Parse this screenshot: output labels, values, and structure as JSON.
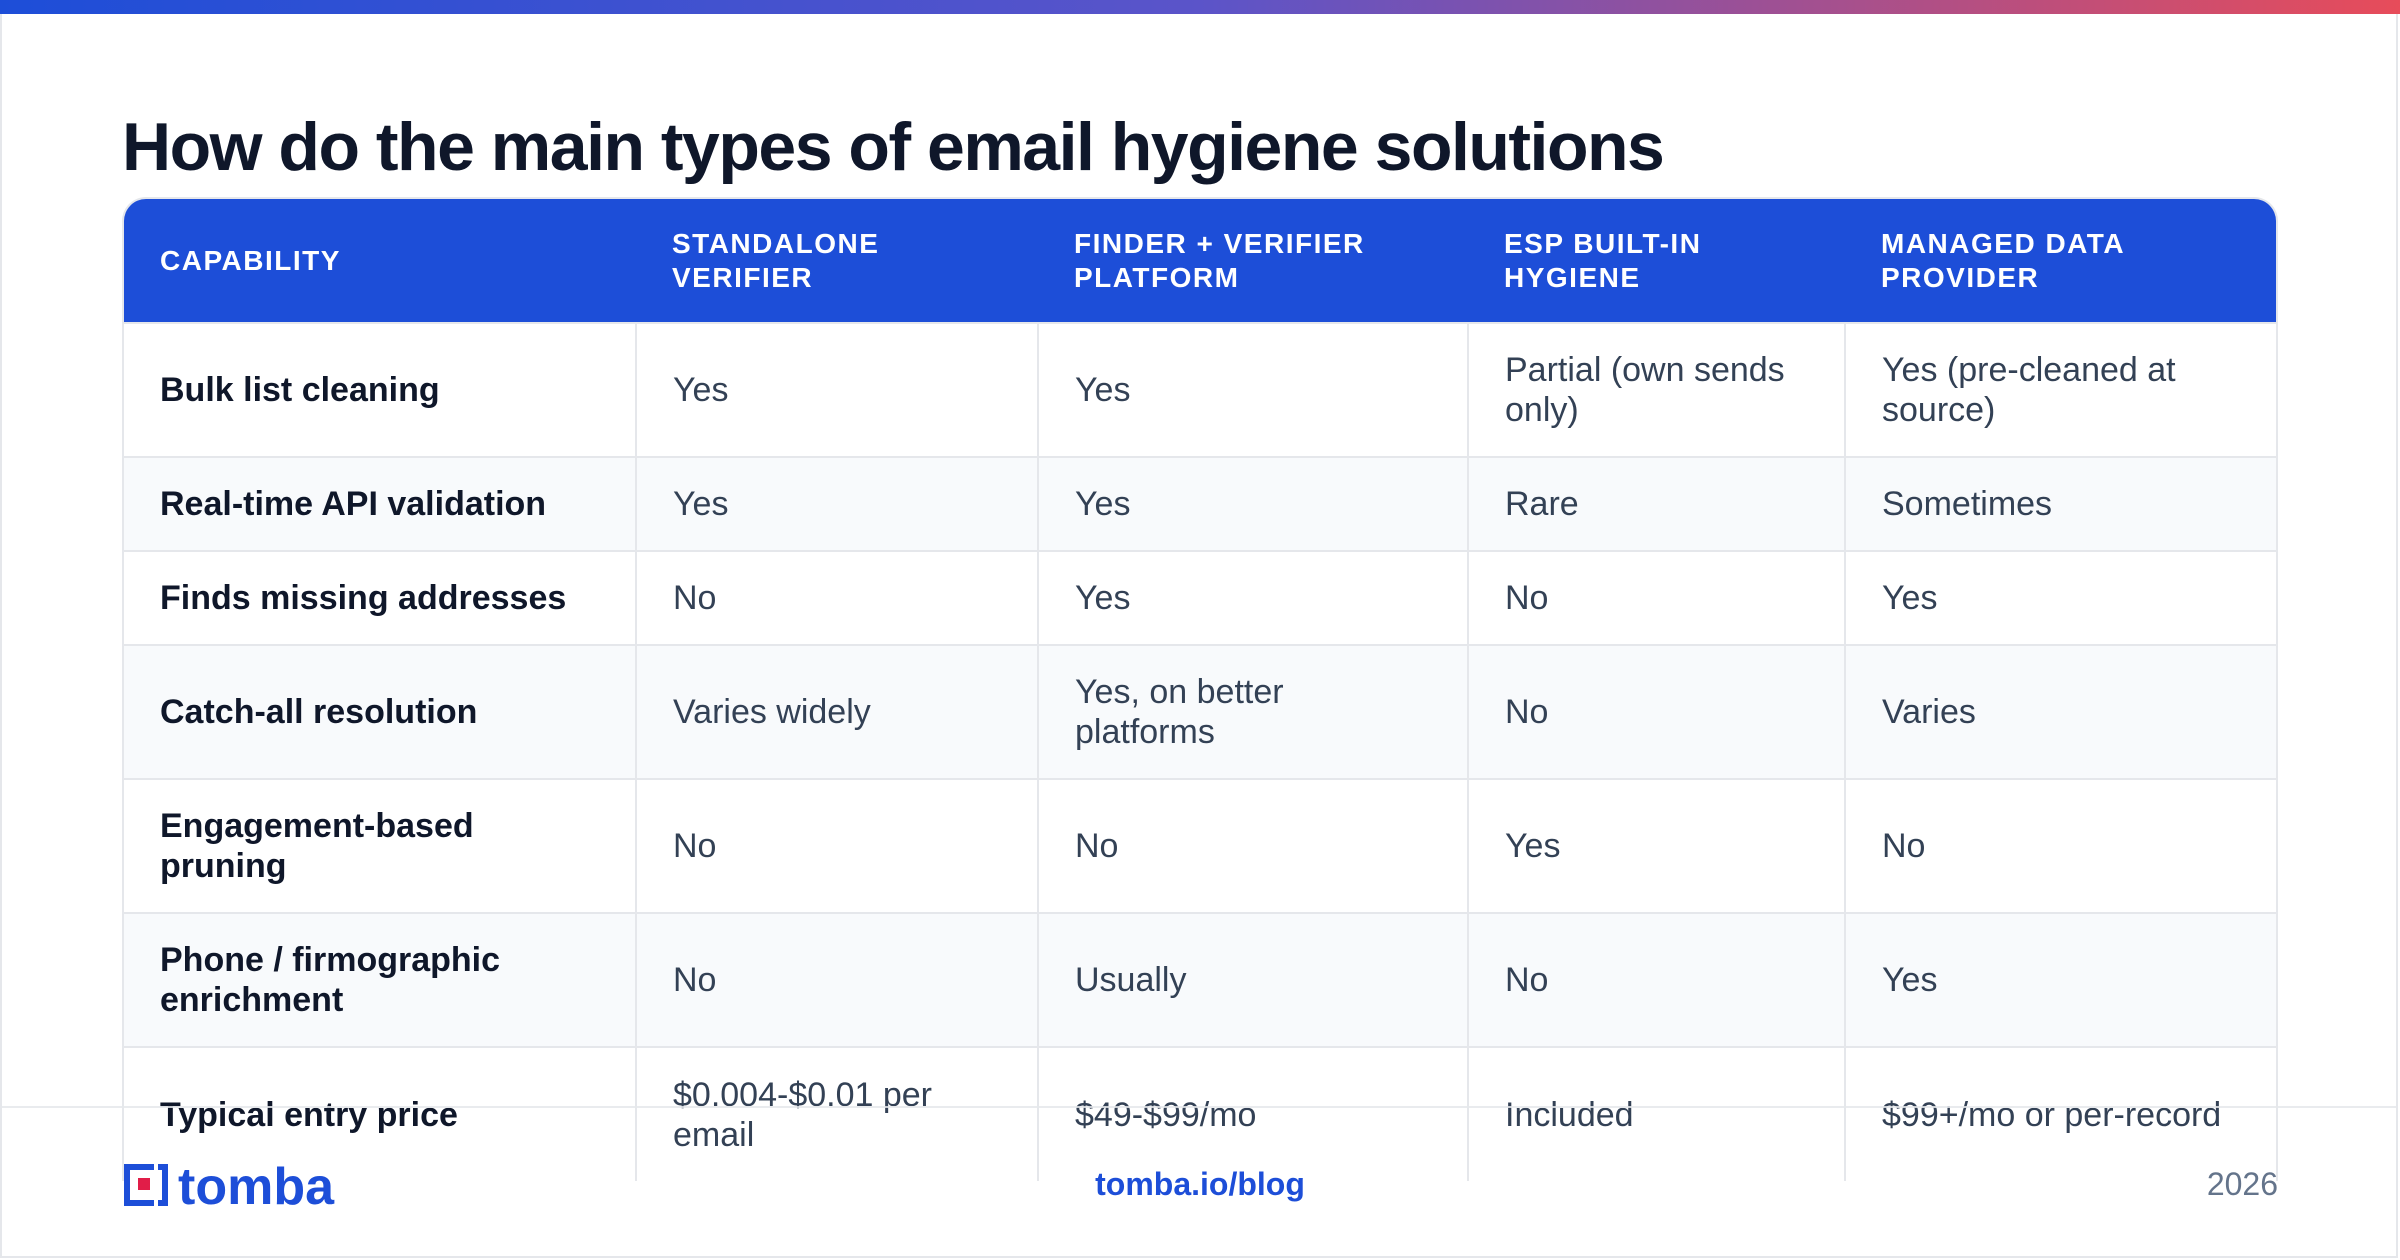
{
  "title": "How do the main types of email hygiene solutions",
  "table": {
    "headers": [
      "CAPABILITY",
      "STANDALONE VERIFIER",
      "FINDER + VERIFIER PLATFORM",
      "ESP BUILT-IN HYGIENE",
      "MANAGED DATA PROVIDER"
    ],
    "rows": [
      [
        "Bulk list cleaning",
        "Yes",
        "Yes",
        "Partial (own sends only)",
        "Yes (pre-cleaned at source)"
      ],
      [
        "Real-time API validation",
        "Yes",
        "Yes",
        "Rare",
        "Sometimes"
      ],
      [
        "Finds missing addresses",
        "No",
        "Yes",
        "No",
        "Yes"
      ],
      [
        "Catch-all resolution",
        "Varies widely",
        "Yes, on better platforms",
        "No",
        "Varies"
      ],
      [
        "Engagement-based pruning",
        "No",
        "No",
        "Yes",
        "No"
      ],
      [
        "Phone / firmographic enrichment",
        "No",
        "Usually",
        "No",
        "Yes"
      ],
      [
        "Typical entry price",
        "$0.004-$0.01 per email",
        "$49-$99/mo",
        "Included",
        "$99+/mo or per-record"
      ]
    ]
  },
  "footer": {
    "link": "tomba.io/blog",
    "year": "2026"
  },
  "brand": {
    "logo_text": "tomba",
    "primary_color": "#1d4ed8",
    "accent_color": "#e11d48"
  }
}
